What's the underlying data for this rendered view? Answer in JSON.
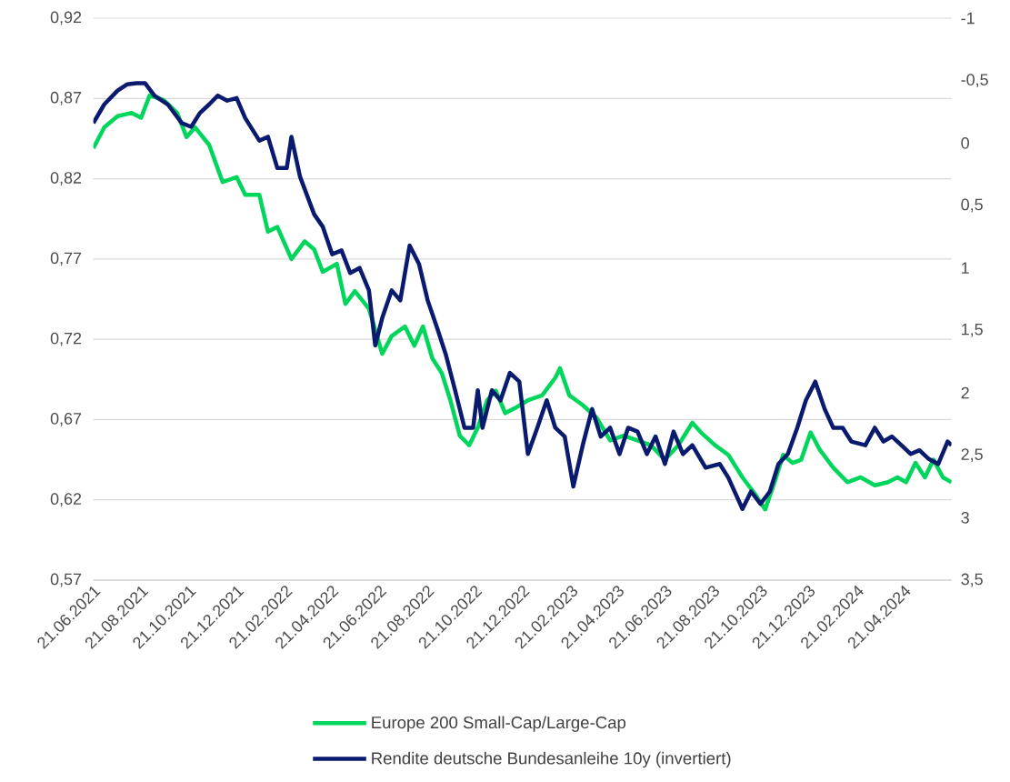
{
  "chart_data": {
    "type": "line",
    "xlim": [
      "2021-06-21",
      "2024-06-21"
    ],
    "xticks": [
      {
        "value": "2021-06-21",
        "label": "21.06.2021"
      },
      {
        "value": "2021-08-21",
        "label": "21.08.2021"
      },
      {
        "value": "2021-10-21",
        "label": "21.10.2021"
      },
      {
        "value": "2021-12-21",
        "label": "21.12.2021"
      },
      {
        "value": "2022-02-21",
        "label": "21.02.2022"
      },
      {
        "value": "2022-04-21",
        "label": "21.04.2022"
      },
      {
        "value": "2022-06-21",
        "label": "21.06.2022"
      },
      {
        "value": "2022-08-21",
        "label": "21.08.2022"
      },
      {
        "value": "2022-10-21",
        "label": "21.10.2022"
      },
      {
        "value": "2022-12-21",
        "label": "21.12.2022"
      },
      {
        "value": "2023-02-21",
        "label": "21.02.2023"
      },
      {
        "value": "2023-04-21",
        "label": "21.04.2023"
      },
      {
        "value": "2023-06-21",
        "label": "21.06.2023"
      },
      {
        "value": "2023-08-21",
        "label": "21.08.2023"
      },
      {
        "value": "2023-10-21",
        "label": "21.10.2023"
      },
      {
        "value": "2023-12-21",
        "label": "21.12.2023"
      },
      {
        "value": "2024-02-21",
        "label": "21.02.2024"
      },
      {
        "value": "2024-04-21",
        "label": "21.04.2024"
      }
    ],
    "ylim": [
      0.57,
      0.92
    ],
    "yticks": [
      {
        "value": 0.57,
        "label": "0,57"
      },
      {
        "value": 0.62,
        "label": "0,62"
      },
      {
        "value": 0.67,
        "label": "0,67"
      },
      {
        "value": 0.72,
        "label": "0,72"
      },
      {
        "value": 0.77,
        "label": "0,77"
      },
      {
        "value": 0.82,
        "label": "0,82"
      },
      {
        "value": 0.87,
        "label": "0,87"
      },
      {
        "value": 0.92,
        "label": "0,92"
      }
    ],
    "y2lim": [
      3.5,
      -1
    ],
    "y2ticks": [
      {
        "value": 3.5,
        "label": "3,5"
      },
      3,
      {
        "value": 2.5,
        "label": "2,5"
      },
      2,
      {
        "value": 1.5,
        "label": "1,5"
      },
      1,
      {
        "value": 0.5,
        "label": "0,5"
      },
      0,
      {
        "value": -0.5,
        "label": "-0,5"
      },
      -1
    ],
    "grid": "y",
    "legend": "bottom",
    "series": [
      {
        "name": "Europe 200 Small-Cap/Large-Cap",
        "color": "#00d65c",
        "x": [
          "2021-06-21",
          "2021-07-05",
          "2021-07-22",
          "2021-08-09",
          "2021-08-21",
          "2021-09-01",
          "2021-09-19",
          "2021-10-06",
          "2021-10-18",
          "2021-10-29",
          "2021-11-16",
          "2021-12-03",
          "2021-12-21",
          "2022-01-01",
          "2022-01-19",
          "2022-01-30",
          "2022-02-11",
          "2022-03-01",
          "2022-03-18",
          "2022-03-30",
          "2022-04-10",
          "2022-04-28",
          "2022-05-09",
          "2022-05-21",
          "2022-06-08",
          "2022-06-25",
          "2022-07-07",
          "2022-07-24",
          "2022-08-05",
          "2022-08-16",
          "2022-08-28",
          "2022-09-09",
          "2022-09-20",
          "2022-10-02",
          "2022-10-14",
          "2022-10-25",
          "2022-11-06",
          "2022-11-17",
          "2022-11-29",
          "2022-12-11",
          "2022-12-28",
          "2023-01-15",
          "2023-02-01",
          "2023-02-07",
          "2023-02-19",
          "2023-03-08",
          "2023-03-26",
          "2023-04-12",
          "2023-04-29",
          "2023-05-17",
          "2023-06-03",
          "2023-06-21",
          "2023-07-08",
          "2023-07-26",
          "2023-08-06",
          "2023-08-24",
          "2023-09-10",
          "2023-09-28",
          "2023-10-15",
          "2023-10-27",
          "2023-11-08",
          "2023-11-19",
          "2023-12-01",
          "2023-12-12",
          "2023-12-24",
          "2024-01-05",
          "2024-01-22",
          "2024-02-09",
          "2024-02-26",
          "2024-03-15",
          "2024-04-01",
          "2024-04-13",
          "2024-04-24",
          "2024-05-06",
          "2024-05-18",
          "2024-05-29",
          "2024-06-10",
          "2024-06-21"
        ],
        "values": [
          0.839,
          0.852,
          0.859,
          0.861,
          0.858,
          0.872,
          0.869,
          0.861,
          0.846,
          0.852,
          0.841,
          0.818,
          0.821,
          0.81,
          0.81,
          0.787,
          0.79,
          0.77,
          0.781,
          0.776,
          0.762,
          0.767,
          0.742,
          0.75,
          0.739,
          0.711,
          0.722,
          0.728,
          0.716,
          0.728,
          0.708,
          0.699,
          0.682,
          0.66,
          0.654,
          0.665,
          0.682,
          0.688,
          0.674,
          0.677,
          0.682,
          0.685,
          0.696,
          0.702,
          0.685,
          0.679,
          0.671,
          0.657,
          0.66,
          0.657,
          0.654,
          0.645,
          0.654,
          0.668,
          0.662,
          0.654,
          0.648,
          0.634,
          0.623,
          0.614,
          0.631,
          0.648,
          0.643,
          0.645,
          0.662,
          0.651,
          0.64,
          0.631,
          0.634,
          0.629,
          0.631,
          0.634,
          0.631,
          0.643,
          0.634,
          0.645,
          0.634,
          0.631
        ]
      },
      {
        "name": "Rendite deutsche Bundesanleihe 10y (invertiert)",
        "color": "#0a1a6e",
        "axis": "y2",
        "x": [
          "2021-06-21",
          "2021-07-05",
          "2021-07-22",
          "2021-08-03",
          "2021-08-15",
          "2021-08-26",
          "2021-09-07",
          "2021-09-24",
          "2021-10-12",
          "2021-10-24",
          "2021-11-04",
          "2021-11-16",
          "2021-11-27",
          "2021-12-09",
          "2021-12-21",
          "2022-01-01",
          "2022-01-19",
          "2022-01-30",
          "2022-02-11",
          "2022-02-23",
          "2022-03-01",
          "2022-03-12",
          "2022-03-30",
          "2022-04-10",
          "2022-04-22",
          "2022-05-04",
          "2022-05-15",
          "2022-05-27",
          "2022-06-08",
          "2022-06-16",
          "2022-06-25",
          "2022-07-07",
          "2022-07-18",
          "2022-07-30",
          "2022-08-11",
          "2022-08-22",
          "2022-09-03",
          "2022-09-14",
          "2022-09-26",
          "2022-10-08",
          "2022-10-19",
          "2022-10-25",
          "2022-10-31",
          "2022-11-12",
          "2022-11-23",
          "2022-12-05",
          "2022-12-17",
          "2022-12-28",
          "2023-01-09",
          "2023-01-21",
          "2023-02-01",
          "2023-02-13",
          "2023-02-24",
          "2023-03-08",
          "2023-03-20",
          "2023-03-31",
          "2023-04-12",
          "2023-04-24",
          "2023-05-05",
          "2023-05-17",
          "2023-05-29",
          "2023-06-09",
          "2023-06-21",
          "2023-07-02",
          "2023-07-14",
          "2023-07-26",
          "2023-08-12",
          "2023-08-30",
          "2023-09-10",
          "2023-09-28",
          "2023-10-09",
          "2023-10-21",
          "2023-11-02",
          "2023-11-13",
          "2023-11-25",
          "2023-12-07",
          "2023-12-18",
          "2023-12-30",
          "2024-01-11",
          "2024-01-22",
          "2024-02-03",
          "2024-02-14",
          "2024-03-03",
          "2024-03-15",
          "2024-03-26",
          "2024-04-06",
          "2024-04-18",
          "2024-04-30",
          "2024-05-11",
          "2024-05-23",
          "2024-06-04",
          "2024-06-16",
          "2024-06-21"
        ],
        "values": [
          -0.16,
          -0.31,
          -0.42,
          -0.47,
          -0.48,
          -0.48,
          -0.38,
          -0.31,
          -0.16,
          -0.13,
          -0.24,
          -0.31,
          -0.38,
          -0.34,
          -0.36,
          -0.2,
          -0.02,
          -0.05,
          0.2,
          0.2,
          -0.05,
          0.27,
          0.57,
          0.67,
          0.89,
          0.86,
          1.04,
          1.0,
          1.18,
          1.62,
          1.4,
          1.18,
          1.26,
          0.82,
          0.97,
          1.26,
          1.48,
          1.69,
          1.98,
          2.28,
          2.28,
          1.98,
          2.28,
          1.98,
          2.06,
          1.84,
          1.91,
          2.49,
          2.28,
          2.06,
          2.28,
          2.35,
          2.75,
          2.42,
          2.13,
          2.35,
          2.28,
          2.49,
          2.28,
          2.31,
          2.49,
          2.35,
          2.57,
          2.31,
          2.49,
          2.42,
          2.6,
          2.57,
          2.68,
          2.93,
          2.79,
          2.89,
          2.79,
          2.57,
          2.49,
          2.28,
          2.06,
          1.91,
          2.13,
          2.28,
          2.28,
          2.39,
          2.42,
          2.28,
          2.39,
          2.35,
          2.42,
          2.49,
          2.46,
          2.53,
          2.57,
          2.39,
          2.42
        ]
      }
    ]
  }
}
